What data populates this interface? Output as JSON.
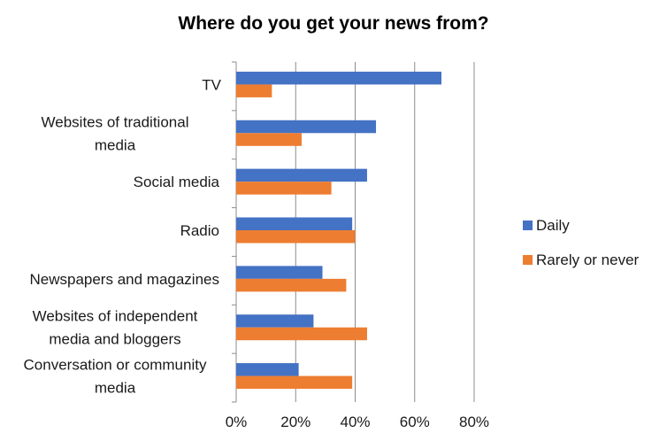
{
  "chart_data": {
    "type": "bar",
    "orientation": "horizontal",
    "title": "Where do you get your news from?",
    "categories": [
      [
        "TV"
      ],
      [
        "Websites of traditional",
        "media"
      ],
      [
        "Social media"
      ],
      [
        "Radio"
      ],
      [
        "Newspapers and magazines"
      ],
      [
        "Websites of independent",
        "media and bloggers"
      ],
      [
        "Conversation or community",
        "media"
      ]
    ],
    "series": [
      {
        "name": "Daily",
        "color": "#4472C4",
        "values": [
          69,
          47,
          44,
          39,
          29,
          26,
          21
        ]
      },
      {
        "name": "Rarely or never",
        "color": "#ED7D31",
        "values": [
          12,
          22,
          32,
          40,
          37,
          44,
          39
        ]
      }
    ],
    "xlim": [
      0,
      80
    ],
    "xticks": [
      "0%",
      "20%",
      "40%",
      "60%",
      "80%"
    ],
    "xtick_values": [
      0,
      20,
      40,
      60,
      80
    ],
    "grid": true,
    "legend_position": "right"
  }
}
